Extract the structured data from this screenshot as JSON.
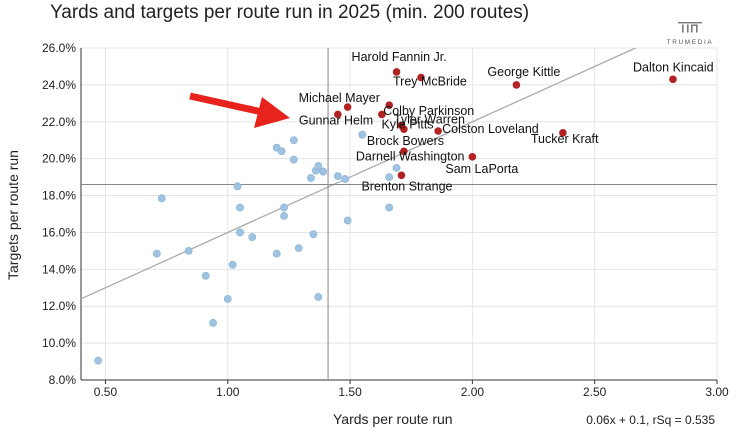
{
  "header": {
    "title": "Yards and targets per route run in 2025 (min. 200 routes)",
    "logo_text": "TRUMEDIA"
  },
  "chart_data": {
    "type": "scatter",
    "title": "Yards and targets per route run in 2025 (min. 200 routes)",
    "xlabel": "Yards per route run",
    "ylabel": "Targets per route run",
    "xlim": [
      0.4,
      3.0
    ],
    "ylim": [
      8.0,
      26.0
    ],
    "x_ticks": [
      "0.50",
      "1.00",
      "1.50",
      "2.00",
      "2.50",
      "3.00"
    ],
    "y_ticks": [
      "8.0%",
      "10.0%",
      "12.0%",
      "14.0%",
      "16.0%",
      "18.0%",
      "20.0%",
      "22.0%",
      "24.0%",
      "26.0%"
    ],
    "grid": true,
    "reference_lines": {
      "x": 1.41,
      "y": 18.6
    },
    "fit": {
      "slope": 6.0,
      "intercept": 10.0,
      "label": "0.06x + 0.1, rSq = 0.535"
    },
    "colors": {
      "highlight": "#b22222",
      "other": "#9fc3e0",
      "fit_line": "#aaaaaa",
      "ref_line": "#888888",
      "arrow": "#e8231d"
    },
    "highlighted": [
      {
        "name": "Dalton Kincaid",
        "x": 2.82,
        "y": 24.3
      },
      {
        "name": "Harold Fannin Jr.",
        "x": 1.69,
        "y": 24.7
      },
      {
        "name": "Trey McBride",
        "x": 1.79,
        "y": 24.4
      },
      {
        "name": "George Kittle",
        "x": 2.18,
        "y": 24.0
      },
      {
        "name": "Michael Mayer",
        "x": 1.49,
        "y": 22.8
      },
      {
        "name": "Colby Parkinson",
        "x": 1.66,
        "y": 22.9
      },
      {
        "name": "Tyler Warren",
        "x": 1.63,
        "y": 22.4
      },
      {
        "name": "Gunnar Helm",
        "x": 1.45,
        "y": 22.4
      },
      {
        "name": "Kyle Pitts",
        "x": 1.71,
        "y": 21.8
      },
      {
        "name": "Colston Loveland",
        "x": 1.86,
        "y": 21.5
      },
      {
        "name": "Brock Bowers",
        "x": 1.72,
        "y": 21.6
      },
      {
        "name": "Tucker Kraft",
        "x": 2.37,
        "y": 21.4
      },
      {
        "name": "Darnell Washington",
        "x": 1.72,
        "y": 20.4
      },
      {
        "name": "Sam LaPorta",
        "x": 2.0,
        "y": 20.1
      },
      {
        "name": "Brenton Strange",
        "x": 1.71,
        "y": 19.1
      }
    ],
    "others": [
      {
        "x": 0.47,
        "y": 9.05
      },
      {
        "x": 0.73,
        "y": 17.85
      },
      {
        "x": 0.71,
        "y": 14.85
      },
      {
        "x": 0.84,
        "y": 15.0
      },
      {
        "x": 0.91,
        "y": 13.65
      },
      {
        "x": 0.94,
        "y": 11.1
      },
      {
        "x": 1.0,
        "y": 12.4
      },
      {
        "x": 1.02,
        "y": 14.25
      },
      {
        "x": 1.04,
        "y": 18.5
      },
      {
        "x": 1.05,
        "y": 17.35
      },
      {
        "x": 1.05,
        "y": 16.0
      },
      {
        "x": 1.1,
        "y": 15.75
      },
      {
        "x": 1.2,
        "y": 20.6
      },
      {
        "x": 1.22,
        "y": 20.4
      },
      {
        "x": 1.2,
        "y": 14.85
      },
      {
        "x": 1.23,
        "y": 17.35
      },
      {
        "x": 1.23,
        "y": 16.9
      },
      {
        "x": 1.27,
        "y": 21.0
      },
      {
        "x": 1.27,
        "y": 19.95
      },
      {
        "x": 1.29,
        "y": 15.15
      },
      {
        "x": 1.34,
        "y": 18.95
      },
      {
        "x": 1.35,
        "y": 15.9
      },
      {
        "x": 1.36,
        "y": 19.35
      },
      {
        "x": 1.37,
        "y": 19.6
      },
      {
        "x": 1.39,
        "y": 19.3
      },
      {
        "x": 1.37,
        "y": 12.5
      },
      {
        "x": 1.45,
        "y": 19.05
      },
      {
        "x": 1.48,
        "y": 18.9
      },
      {
        "x": 1.49,
        "y": 16.65
      },
      {
        "x": 1.55,
        "y": 21.3
      },
      {
        "x": 1.66,
        "y": 19.0
      },
      {
        "x": 1.66,
        "y": 17.35
      },
      {
        "x": 1.69,
        "y": 19.5
      }
    ]
  }
}
